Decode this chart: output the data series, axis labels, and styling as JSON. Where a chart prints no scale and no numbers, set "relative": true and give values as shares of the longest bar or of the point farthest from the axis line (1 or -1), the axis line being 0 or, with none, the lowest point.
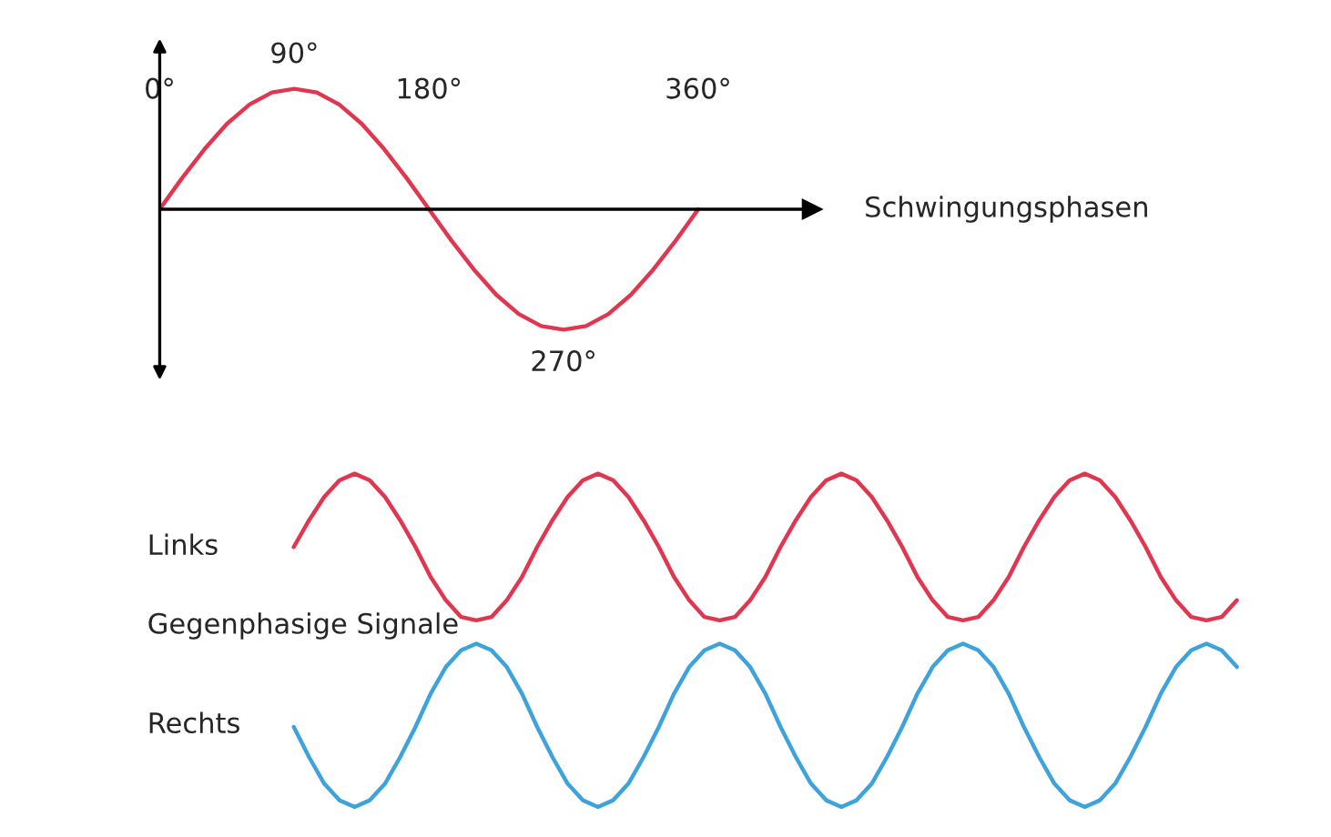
{
  "chart_data": [
    {
      "type": "line",
      "relative": true,
      "tick_labels": "x",
      "xlabel": "Schwingungsphasen",
      "x": [
        0,
        15,
        30,
        45,
        60,
        75,
        90,
        105,
        120,
        135,
        150,
        165,
        180,
        195,
        210,
        225,
        240,
        255,
        270,
        285,
        300,
        315,
        330,
        345,
        360
      ],
      "xlim": [
        0,
        436
      ],
      "xticks": [
        {
          "value": 0,
          "label": "0°"
        },
        {
          "value": 180,
          "label": "180°"
        },
        {
          "value": 360,
          "label": "360°"
        }
      ],
      "series": [
        {
          "color": "#e0364f",
          "values": [
            0,
            0.26,
            0.5,
            0.71,
            0.87,
            0.97,
            1,
            0.97,
            0.87,
            0.71,
            0.5,
            0.26,
            0,
            -0.26,
            -0.5,
            -0.71,
            -0.87,
            -0.97,
            -1,
            -0.97,
            -0.87,
            -0.71,
            -0.5,
            -0.26,
            0
          ]
        }
      ],
      "annotations": [
        {
          "text": "90°",
          "x": 90,
          "y": 1
        },
        {
          "text": "270°",
          "x": 270,
          "y": -1
        }
      ]
    },
    {
      "type": "line",
      "relative": true,
      "tick_labels": false,
      "categories": [
        null,
        null,
        null,
        null,
        null,
        null,
        null,
        null,
        null,
        null,
        null,
        null,
        null,
        null,
        null,
        null,
        null,
        null,
        null,
        null,
        null,
        null,
        null,
        null,
        null,
        null,
        null,
        null,
        null,
        null,
        null,
        null,
        null,
        null,
        null,
        null,
        null,
        null,
        null,
        null,
        null,
        null,
        null,
        null,
        null,
        null,
        null,
        null,
        null,
        null,
        null,
        null,
        null,
        null,
        null,
        null,
        null,
        null,
        null,
        null,
        null,
        null,
        null
      ],
      "series": [
        {
          "name": "Links",
          "color": "#e0364f",
          "values": [
            0.78,
            0.86,
            0.93,
            0.98,
            1.0,
            0.98,
            0.93,
            0.86,
            0.78,
            0.69,
            0.62,
            0.57,
            0.56,
            0.57,
            0.62,
            0.69,
            0.78,
            0.86,
            0.93,
            0.98,
            1.0,
            0.98,
            0.93,
            0.86,
            0.78,
            0.69,
            0.62,
            0.57,
            0.56,
            0.57,
            0.62,
            0.69,
            0.78,
            0.86,
            0.93,
            0.98,
            1.0,
            0.98,
            0.93,
            0.86,
            0.78,
            0.69,
            0.62,
            0.57,
            0.56,
            0.57,
            0.62,
            0.69,
            0.78,
            0.86,
            0.93,
            0.98,
            1.0,
            0.98,
            0.93,
            0.86,
            0.78,
            0.69,
            0.62,
            0.57,
            0.56,
            0.57,
            0.62
          ]
        },
        {
          "name": "Rechts",
          "color": "#3ea3db",
          "values": [
            0.24,
            0.15,
            0.07,
            0.02,
            0.0,
            0.02,
            0.07,
            0.15,
            0.24,
            0.34,
            0.42,
            0.47,
            0.49,
            0.47,
            0.42,
            0.34,
            0.24,
            0.15,
            0.07,
            0.02,
            0.0,
            0.02,
            0.07,
            0.15,
            0.24,
            0.34,
            0.42,
            0.47,
            0.49,
            0.47,
            0.42,
            0.34,
            0.24,
            0.15,
            0.07,
            0.02,
            0.0,
            0.02,
            0.07,
            0.15,
            0.24,
            0.34,
            0.42,
            0.47,
            0.49,
            0.47,
            0.42,
            0.34,
            0.24,
            0.15,
            0.07,
            0.02,
            0.0,
            0.02,
            0.07,
            0.15,
            0.24,
            0.34,
            0.42,
            0.47,
            0.49,
            0.47,
            0.42
          ]
        }
      ],
      "annotations": [
        "Gegenphasige Signale"
      ]
    }
  ]
}
